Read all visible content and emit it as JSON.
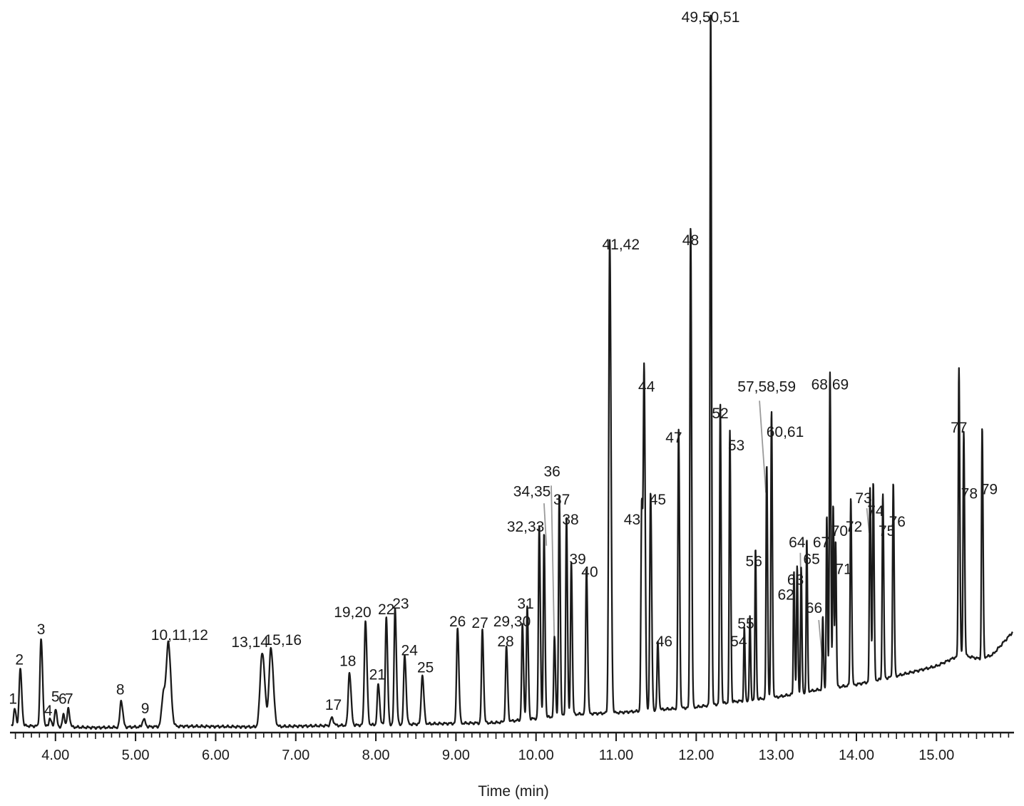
{
  "chart_data": {
    "type": "line",
    "title": "",
    "xlabel": "Time (min)",
    "ylabel": "",
    "xlim": [
      3.45,
      15.95
    ],
    "ylim": [
      0,
      100
    ],
    "x_ticks": [
      4.0,
      5.0,
      6.0,
      7.0,
      8.0,
      9.0,
      10.0,
      11.0,
      12.0,
      13.0,
      14.0,
      15.0
    ],
    "x_tick_labels": [
      "4.00",
      "5.00",
      "6.00",
      "7.00",
      "8.00",
      "9.00",
      "10.00",
      "11.00",
      "12.00",
      "13.00",
      "14.00",
      "15.00"
    ],
    "grid": false,
    "series": [
      {
        "color": "#1a1a1a",
        "baseline": [
          [
            3.45,
            0.6
          ],
          [
            4.5,
            0.3
          ],
          [
            5.6,
            0.5
          ],
          [
            6.5,
            0.4
          ],
          [
            7.5,
            0.6
          ],
          [
            8.5,
            0.8
          ],
          [
            9.5,
            1.0
          ],
          [
            10.5,
            2.2
          ],
          [
            11.0,
            2.4
          ],
          [
            11.5,
            2.8
          ],
          [
            12.0,
            3.2
          ],
          [
            12.5,
            4.0
          ],
          [
            13.0,
            4.6
          ],
          [
            13.5,
            5.6
          ],
          [
            14.0,
            6.4
          ],
          [
            14.5,
            7.6
          ],
          [
            15.0,
            9.0
          ],
          [
            15.3,
            10.6
          ],
          [
            15.55,
            10.0
          ],
          [
            15.7,
            10.6
          ],
          [
            15.95,
            13.8
          ]
        ],
        "peaks": [
          {
            "label": "1",
            "rt": 3.49,
            "height": 2.4,
            "width": 0.012,
            "lx": 3.47,
            "ly": 3.7
          },
          {
            "label": "2",
            "rt": 3.56,
            "height": 8.0,
            "width": 0.014,
            "lx": 3.55,
            "ly": 9.2
          },
          {
            "label": "3",
            "rt": 3.82,
            "height": 12.3,
            "width": 0.014,
            "lx": 3.82,
            "ly": 13.5
          },
          {
            "label": "4",
            "rt": 3.93,
            "height": 1.2,
            "width": 0.012,
            "lx": 3.91,
            "ly": 2.0
          },
          {
            "label": "5",
            "rt": 4.0,
            "height": 2.5,
            "width": 0.012,
            "lx": 4.0,
            "ly": 4.0
          },
          {
            "label": "6",
            "rt": 4.1,
            "height": 1.8,
            "width": 0.012,
            "lx": 4.09,
            "ly": 3.7
          },
          {
            "label": "7",
            "rt": 4.16,
            "height": 2.6,
            "width": 0.013,
            "lx": 4.17,
            "ly": 3.7
          },
          {
            "label": "8",
            "rt": 4.82,
            "height": 3.8,
            "width": 0.015,
            "lx": 4.81,
            "ly": 5.0
          },
          {
            "label": "9",
            "rt": 5.1,
            "height": 1.1,
            "width": 0.015,
            "lx": 5.12,
            "ly": 2.3
          },
          {
            "label": "10,11,12",
            "rt": 5.41,
            "height": 11.4,
            "width": 0.022,
            "lx": 5.55,
            "ly": 12.7
          },
          {
            "label": "",
            "rt": 5.35,
            "height": 5.0,
            "width": 0.022,
            "lx": 0,
            "ly": 0
          },
          {
            "label": "13,14",
            "rt": 6.58,
            "height": 10.5,
            "width": 0.025,
            "lx": 6.43,
            "ly": 11.7
          },
          {
            "label": "15,16",
            "rt": 6.69,
            "height": 11.1,
            "width": 0.022,
            "lx": 6.84,
            "ly": 12.0
          },
          {
            "label": "17",
            "rt": 7.45,
            "height": 1.1,
            "width": 0.016,
            "lx": 7.47,
            "ly": 2.8
          },
          {
            "label": "18",
            "rt": 7.67,
            "height": 7.5,
            "width": 0.015,
            "lx": 7.65,
            "ly": 9.0
          },
          {
            "label": "19,20",
            "rt": 7.87,
            "height": 14.7,
            "width": 0.014,
            "lx": 7.71,
            "ly": 15.9
          },
          {
            "label": "21",
            "rt": 8.03,
            "height": 5.7,
            "width": 0.013,
            "lx": 8.02,
            "ly": 7.1
          },
          {
            "label": "22",
            "rt": 8.13,
            "height": 15.3,
            "width": 0.012,
            "lx": 8.13,
            "ly": 16.3
          },
          {
            "label": "23",
            "rt": 8.24,
            "height": 16.6,
            "width": 0.012,
            "lx": 8.31,
            "ly": 17.1
          },
          {
            "label": "24",
            "rt": 8.36,
            "height": 9.8,
            "width": 0.013,
            "lx": 8.42,
            "ly": 10.5
          },
          {
            "label": "25",
            "rt": 8.58,
            "height": 6.9,
            "width": 0.014,
            "lx": 8.62,
            "ly": 8.1
          },
          {
            "label": "26",
            "rt": 9.02,
            "height": 13.6,
            "width": 0.012,
            "lx": 9.02,
            "ly": 14.6
          },
          {
            "label": "27",
            "rt": 9.33,
            "height": 13.2,
            "width": 0.011,
            "lx": 9.3,
            "ly": 14.4
          },
          {
            "label": "28",
            "rt": 9.63,
            "height": 10.6,
            "width": 0.011,
            "lx": 9.62,
            "ly": 11.8
          },
          {
            "label": "29,30",
            "rt": 9.83,
            "height": 13.4,
            "width": 0.01,
            "lx": 9.7,
            "ly": 14.6
          },
          {
            "label": "31",
            "rt": 9.89,
            "height": 15.8,
            "width": 0.01,
            "lx": 9.87,
            "ly": 17.1
          },
          {
            "label": "32,33",
            "rt": 10.04,
            "height": 27.1,
            "width": 0.01,
            "lx": 9.87,
            "ly": 28.0
          },
          {
            "label": "34,35",
            "rt": 10.1,
            "height": 25.9,
            "width": 0.009,
            "lx": 9.95,
            "ly": 33.0
          },
          {
            "label": "36",
            "rt": 10.23,
            "height": 11.3,
            "width": 0.009,
            "lx": 10.2,
            "ly": 35.8
          },
          {
            "label": "37",
            "rt": 10.29,
            "height": 31.2,
            "width": 0.009,
            "lx": 10.32,
            "ly": 31.8
          },
          {
            "label": "38",
            "rt": 10.38,
            "height": 28.3,
            "width": 0.009,
            "lx": 10.43,
            "ly": 29.0
          },
          {
            "label": "39",
            "rt": 10.44,
            "height": 21.8,
            "width": 0.009,
            "lx": 10.52,
            "ly": 23.4
          },
          {
            "label": "40",
            "rt": 10.63,
            "height": 20.5,
            "width": 0.01,
            "lx": 10.67,
            "ly": 21.6
          },
          {
            "label": "41,42",
            "rt": 10.92,
            "height": 66.8,
            "width": 0.012,
            "lx": 11.06,
            "ly": 67.9
          },
          {
            "label": "43",
            "rt": 11.32,
            "height": 29.3,
            "width": 0.01,
            "lx": 11.2,
            "ly": 29.0
          },
          {
            "label": "44",
            "rt": 11.35,
            "height": 46.5,
            "width": 0.01,
            "lx": 11.38,
            "ly": 47.8
          },
          {
            "label": "45",
            "rt": 11.43,
            "height": 30.7,
            "width": 0.01,
            "lx": 11.52,
            "ly": 31.8
          },
          {
            "label": "46",
            "rt": 11.52,
            "height": 9.6,
            "width": 0.009,
            "lx": 11.6,
            "ly": 11.8
          },
          {
            "label": "47",
            "rt": 11.78,
            "height": 39.4,
            "width": 0.009,
            "lx": 11.72,
            "ly": 40.6
          },
          {
            "label": "48",
            "rt": 11.93,
            "height": 68.1,
            "width": 0.009,
            "lx": 11.93,
            "ly": 68.5
          },
          {
            "label": "49,50,51",
            "rt": 12.18,
            "height": 98.0,
            "width": 0.008,
            "lx": 12.18,
            "ly": 100.0
          },
          {
            "label": "52",
            "rt": 12.3,
            "height": 42.5,
            "width": 0.008,
            "lx": 12.3,
            "ly": 44.0
          },
          {
            "label": "53",
            "rt": 12.42,
            "height": 38.3,
            "width": 0.008,
            "lx": 12.5,
            "ly": 39.5
          },
          {
            "label": "54",
            "rt": 12.6,
            "height": 10.4,
            "width": 0.007,
            "lx": 12.53,
            "ly": 11.8
          },
          {
            "label": "55",
            "rt": 12.67,
            "height": 11.8,
            "width": 0.007,
            "lx": 12.62,
            "ly": 14.3
          },
          {
            "label": "56",
            "rt": 12.74,
            "height": 21.2,
            "width": 0.007,
            "lx": 12.72,
            "ly": 23.1
          },
          {
            "label": "57,58,59",
            "rt": 12.88,
            "height": 33.0,
            "width": 0.008,
            "lx": 12.88,
            "ly": 47.8
          },
          {
            "label": "60,61",
            "rt": 12.94,
            "height": 40.5,
            "width": 0.008,
            "lx": 13.11,
            "ly": 41.4
          },
          {
            "label": "62",
            "rt": 13.22,
            "height": 17.4,
            "width": 0.007,
            "lx": 13.12,
            "ly": 18.4
          },
          {
            "label": "63",
            "rt": 13.26,
            "height": 18.0,
            "width": 0.007,
            "lx": 13.24,
            "ly": 20.5
          },
          {
            "label": "64",
            "rt": 13.31,
            "height": 17.6,
            "width": 0.007,
            "lx": 13.26,
            "ly": 25.8
          },
          {
            "label": "65",
            "rt": 13.38,
            "height": 21.6,
            "width": 0.007,
            "lx": 13.44,
            "ly": 23.4
          },
          {
            "label": "66",
            "rt": 13.58,
            "height": 10.2,
            "width": 0.007,
            "lx": 13.47,
            "ly": 16.5
          },
          {
            "label": "67",
            "rt": 13.63,
            "height": 24.4,
            "width": 0.007,
            "lx": 13.56,
            "ly": 25.8
          },
          {
            "label": "68,69",
            "rt": 13.67,
            "height": 44.8,
            "width": 0.008,
            "lx": 13.67,
            "ly": 48.1
          },
          {
            "label": "70",
            "rt": 13.71,
            "height": 25.8,
            "width": 0.007,
            "lx": 13.79,
            "ly": 27.4
          },
          {
            "label": "71",
            "rt": 13.74,
            "height": 20.8,
            "width": 0.007,
            "lx": 13.84,
            "ly": 22.0
          },
          {
            "label": "72",
            "rt": 13.93,
            "height": 26.5,
            "width": 0.008,
            "lx": 13.97,
            "ly": 28.0
          },
          {
            "label": "73",
            "rt": 14.17,
            "height": 27.3,
            "width": 0.008,
            "lx": 14.09,
            "ly": 32.0
          },
          {
            "label": "74",
            "rt": 14.21,
            "height": 28.1,
            "width": 0.008,
            "lx": 14.24,
            "ly": 30.2
          },
          {
            "label": "75",
            "rt": 14.33,
            "height": 26.3,
            "width": 0.008,
            "lx": 14.38,
            "ly": 27.4
          },
          {
            "label": "76",
            "rt": 14.46,
            "height": 27.4,
            "width": 0.008,
            "lx": 14.51,
            "ly": 28.7
          },
          {
            "label": "77",
            "rt": 15.28,
            "height": 40.8,
            "width": 0.008,
            "lx": 15.28,
            "ly": 42.0
          },
          {
            "label": "78",
            "rt": 15.34,
            "height": 31.7,
            "width": 0.008,
            "lx": 15.41,
            "ly": 32.7
          },
          {
            "label": "79",
            "rt": 15.57,
            "height": 32.6,
            "width": 0.008,
            "lx": 15.66,
            "ly": 33.3
          }
        ],
        "leaders": [
          {
            "label": "34,35",
            "from": [
              10.1,
              32.0
            ],
            "to": [
              10.13,
              26.0
            ]
          },
          {
            "label": "36",
            "from": [
              10.19,
              34.5
            ],
            "to": [
              10.23,
              11.5
            ]
          },
          {
            "label": "57,58,59",
            "from": [
              12.79,
              46.5
            ],
            "to": [
              12.87,
              33.5
            ]
          },
          {
            "label": "64",
            "from": [
              13.3,
              25.0
            ],
            "to": [
              13.31,
              18.0
            ]
          },
          {
            "label": "66",
            "from": [
              13.53,
              15.5
            ],
            "to": [
              13.57,
              10.5
            ]
          },
          {
            "label": "73",
            "from": [
              14.13,
              31.3
            ],
            "to": [
              14.16,
              27.8
            ]
          }
        ]
      }
    ]
  }
}
